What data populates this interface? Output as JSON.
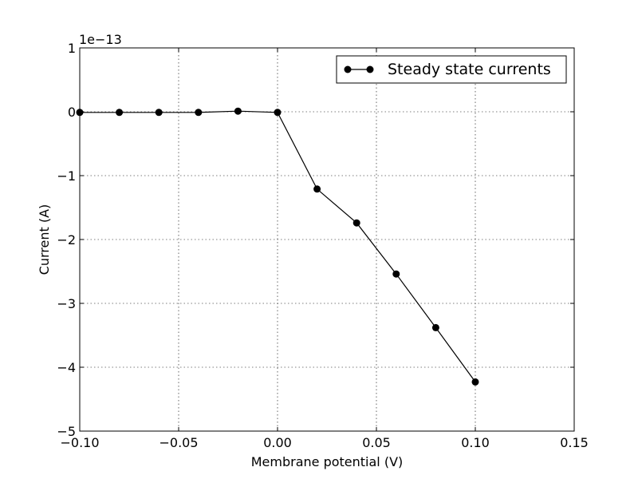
{
  "chart_data": {
    "type": "line",
    "title": "",
    "xlabel": "Membrane potential (V)",
    "ylabel": "Current (A)",
    "y_offset_label": "1e−13",
    "xlim": [
      -0.1,
      0.15
    ],
    "ylim": [
      -5,
      1
    ],
    "xticks": [
      -0.1,
      -0.05,
      0.0,
      0.05,
      0.1,
      0.15
    ],
    "xtick_labels": [
      "−0.10",
      "−0.05",
      "0.00",
      "0.05",
      "0.10",
      "0.15"
    ],
    "yticks": [
      -5,
      -4,
      -3,
      -2,
      -1,
      0,
      1
    ],
    "ytick_labels": [
      "−5",
      "−4",
      "−3",
      "−2",
      "−1",
      "0",
      "1"
    ],
    "grid": true,
    "grid_style": "dotted",
    "legend_position": "top-right",
    "series": [
      {
        "name": "Steady state currents",
        "color": "#000000",
        "marker": "circle",
        "x": [
          -0.1,
          -0.08,
          -0.06,
          -0.04,
          -0.02,
          0.0,
          0.02,
          0.04,
          0.06,
          0.08,
          0.1
        ],
        "y": [
          -0.01,
          -0.01,
          -0.01,
          -0.01,
          0.01,
          -0.01,
          -1.21,
          -1.74,
          -2.54,
          -3.38,
          -4.23
        ]
      }
    ]
  }
}
